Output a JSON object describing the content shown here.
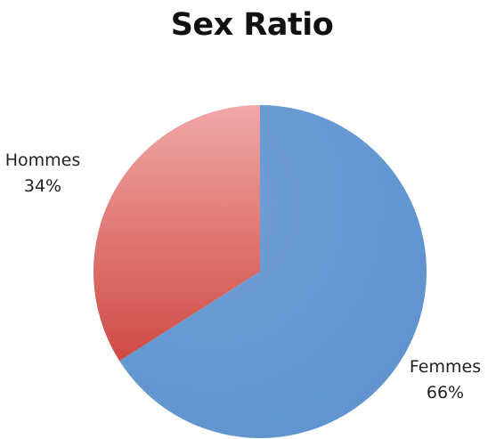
{
  "chart_data": {
    "type": "pie",
    "title": "Sex Ratio",
    "slices": [
      {
        "label": "Femmes",
        "value": 66,
        "display": "66%",
        "color": "#6a9bd1"
      },
      {
        "label": "Hommes",
        "value": 34,
        "display": "34%",
        "color": "#d9605a"
      }
    ],
    "start_angle": 0,
    "direction": "clockwise",
    "label_position": "outside"
  }
}
